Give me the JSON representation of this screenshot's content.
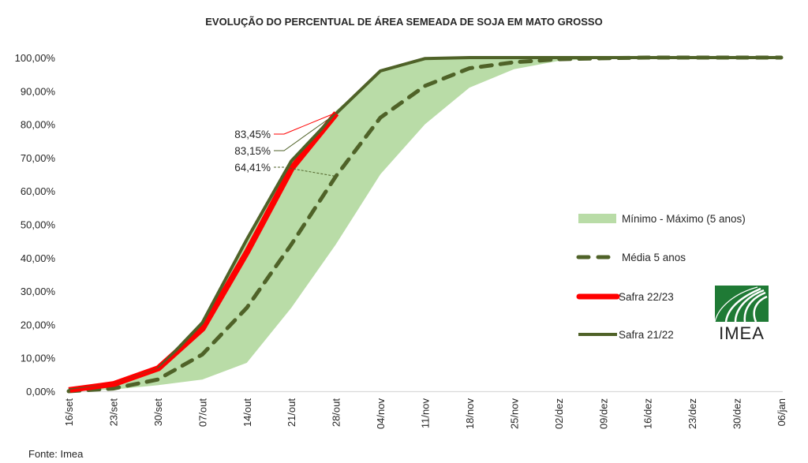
{
  "chart_data": {
    "type": "line",
    "title": "EVOLUÇÃO DO PERCENTUAL DE ÁREA SEMEADA DE SOJA EM MATO GROSSO",
    "xlabel": "",
    "ylabel": "",
    "ylim": [
      0,
      100
    ],
    "yticks": [
      "0,00%",
      "10,00%",
      "20,00%",
      "30,00%",
      "40,00%",
      "50,00%",
      "60,00%",
      "70,00%",
      "80,00%",
      "90,00%",
      "100,00%"
    ],
    "ytick_values": [
      0,
      10,
      20,
      30,
      40,
      50,
      60,
      70,
      80,
      90,
      100
    ],
    "categories": [
      "16/set",
      "23/set",
      "30/set",
      "07/out",
      "14/out",
      "21/out",
      "28/out",
      "04/nov",
      "11/nov",
      "18/nov",
      "25/nov",
      "02/dez",
      "09/dez",
      "16/dez",
      "23/dez",
      "30/dez",
      "06/jan"
    ],
    "grid": false,
    "legend_position": "right",
    "band": {
      "name": "Mínimo - Máximo (5 anos)",
      "color": "#b9dca7",
      "min": [
        0.0,
        0.5,
        1.8,
        3.5,
        8.5,
        25.0,
        44.0,
        65.0,
        80.0,
        91.0,
        96.5,
        99.0,
        99.7,
        100,
        100,
        100,
        100
      ],
      "max": [
        0.3,
        1.7,
        6.5,
        20.5,
        45.5,
        69.0,
        84.0,
        96.0,
        99.7,
        100,
        100,
        100,
        100,
        100,
        100,
        100,
        100
      ]
    },
    "series": [
      {
        "name": "Média 5 anos",
        "style": "dashed",
        "color": "#4f6228",
        "values": [
          0.0,
          0.8,
          3.5,
          11.0,
          25.0,
          44.0,
          64.41,
          82.0,
          91.5,
          96.8,
          98.6,
          99.5,
          99.8,
          100,
          100,
          100,
          100
        ]
      },
      {
        "name": "Safra 21/22",
        "style": "solid",
        "color": "#4f6228",
        "values": [
          0.3,
          1.7,
          6.5,
          20.5,
          45.5,
          69.0,
          83.15,
          96.0,
          99.7,
          100,
          100,
          100,
          100,
          100,
          100,
          100,
          100
        ]
      },
      {
        "name": "Safra 22/23",
        "style": "solid-thick",
        "color": "#ff0000",
        "values": [
          0.5,
          2.3,
          7.0,
          19.0,
          42.0,
          67.0,
          83.45
        ]
      }
    ],
    "annotations": [
      {
        "text": "83,45%",
        "series": "Safra 22/23",
        "category": "28/out",
        "color": "#ff0000"
      },
      {
        "text": "83,15%",
        "series": "Safra 21/22",
        "category": "28/out",
        "color": "#4f6228"
      },
      {
        "text": "64,41%",
        "series": "Média 5 anos",
        "category": "28/out",
        "color": "#4f6228"
      }
    ],
    "legend": [
      {
        "label": "Mínimo - Máximo (5 anos)",
        "kind": "band"
      },
      {
        "label": "Média 5 anos",
        "kind": "dashed"
      },
      {
        "label": "Safra 22/23",
        "kind": "red"
      },
      {
        "label": "Safra 21/22",
        "kind": "green"
      }
    ]
  },
  "source": "Fonte: Imea",
  "logo": {
    "text": "IMEA",
    "color": "#1f7a35"
  }
}
